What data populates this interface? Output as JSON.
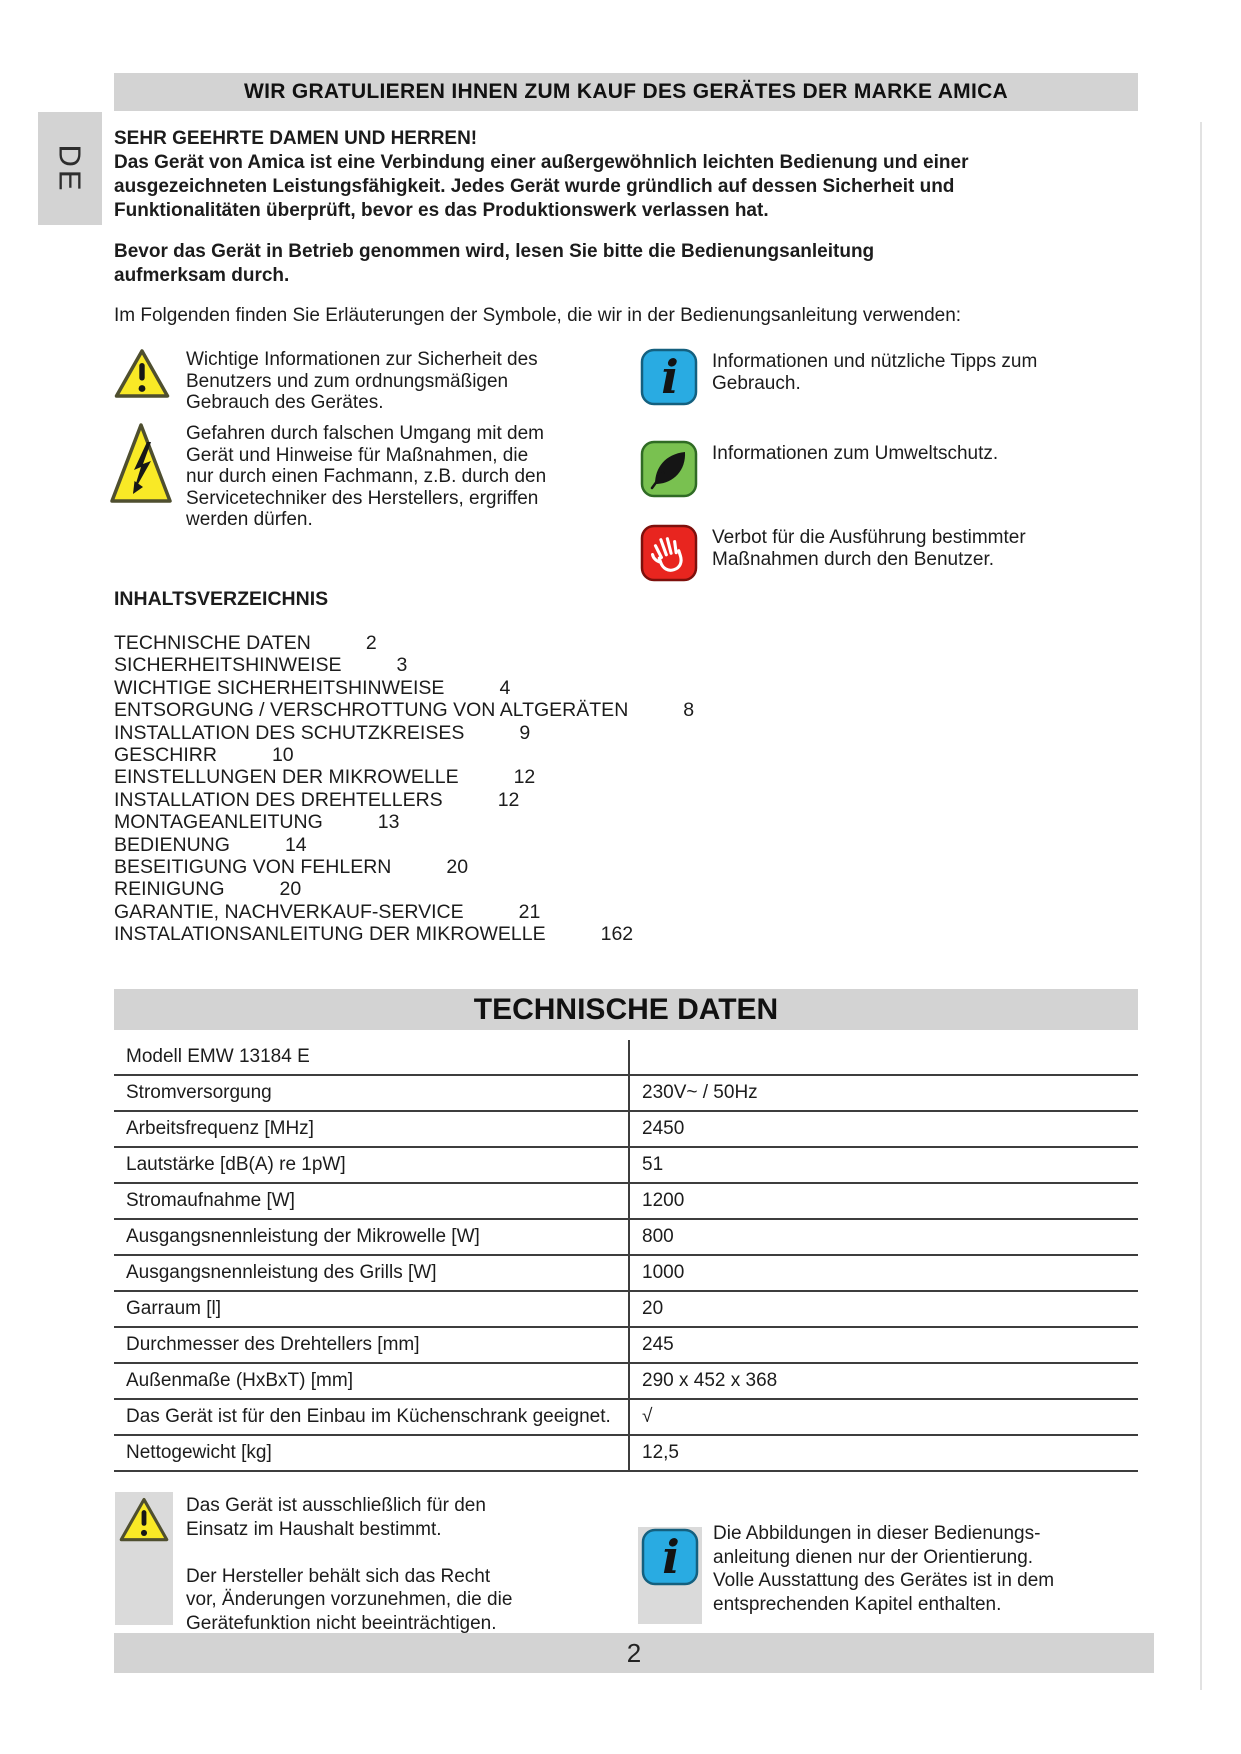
{
  "page": {
    "language_tab": "DE",
    "colors": {
      "bar_gray": "#d3d3d3",
      "icon_blue": "#29abe2",
      "icon_green": "#79c150",
      "icon_red": "#e8251f",
      "icon_yellow": "#f9e926"
    }
  },
  "header": {
    "title": "WIR GRATULIEREN IHNEN ZUM KAUF DES GERÄTES DER MARKE AMICA"
  },
  "intro": {
    "salutation": "SEHR GEEHRTE DAMEN UND HERREN!",
    "paragraph": "Das Gerät von Amica ist eine Verbindung einer außergewöhnlich leichten Bedienung und einer\nausgezeichneten Leistungsfähigkeit. Jedes Gerät wurde gründlich auf dessen Sicherheit und\nFunktionalitäten überprüft, bevor es das Produktionswerk verlassen hat.",
    "read_notice": "Bevor das Gerät in Betrieb genommen wird, lesen Sie bitte die Bedienungsanleitung\naufmerksam durch.",
    "symbols_intro": "Im Folgenden finden Sie Erläuterungen der Symbole, die wir in der Bedienungsanleitung verwenden:"
  },
  "symbols": {
    "warning": {
      "icon": "warning-triangle-icon",
      "text": "Wichtige Informationen zur Sicherheit des\nBenutzers und zum ordnungsmäßigen\nGebrauch des Gerätes."
    },
    "hazard": {
      "icon": "electric-hazard-icon",
      "text": "Gefahren durch falschen Umgang mit dem\nGerät und Hinweise für Maßnahmen, die\nnur durch einen Fachmann, z.B. durch den\nServicetechniker des Herstellers, ergriffen\nwerden dürfen."
    },
    "info": {
      "icon": "info-icon",
      "text": "Informationen und nützliche Tipps zum\nGebrauch."
    },
    "eco": {
      "icon": "leaf-icon",
      "text": "Informationen zum Umweltschutz."
    },
    "prohibition": {
      "icon": "stop-hand-icon",
      "text": "Verbot für die Ausführung bestimmter\nMaßnahmen durch den Benutzer."
    }
  },
  "toc": {
    "heading": "INHALTSVERZEICHNIS",
    "items": [
      {
        "label": "TECHNISCHE DATEN",
        "page": "2"
      },
      {
        "label": "SICHERHEITSHINWEISE",
        "page": "3"
      },
      {
        "label": "WICHTIGE SICHERHEITSHINWEISE",
        "page": "4"
      },
      {
        "label": "ENTSORGUNG / VERSCHROTTUNG VON ALTGERÄTEN",
        "page": "8"
      },
      {
        "label": "INSTALLATION DES SCHUTZKREISES",
        "page": "9"
      },
      {
        "label": "GESCHIRR",
        "page": "10"
      },
      {
        "label": "EINSTELLUNGEN DER MIKROWELLE",
        "page": "12"
      },
      {
        "label": "INSTALLATION DES DREHTELLERS",
        "page": "12"
      },
      {
        "label": "MONTAGEANLEITUNG",
        "page": "13"
      },
      {
        "label": "BEDIENUNG",
        "page": "14"
      },
      {
        "label": "BESEITIGUNG VON FEHLERN",
        "page": "20"
      },
      {
        "label": "REINIGUNG",
        "page": "20"
      },
      {
        "label": "GARANTIE, NACHVERKAUF-SERVICE",
        "page": "21"
      },
      {
        "label": "INSTALATIONSANLEITUNG DER MIKROWELLE",
        "page": "162"
      }
    ]
  },
  "tech_data": {
    "title": "TECHNISCHE DATEN",
    "rows": [
      {
        "label": "Modell EMW 13184 E",
        "value": ""
      },
      {
        "label": "Stromversorgung",
        "value": "230V~ / 50Hz"
      },
      {
        "label": "Arbeitsfrequenz [MHz]",
        "value": "2450"
      },
      {
        "label": "Lautstärke [dB(A) re 1pW]",
        "value": "51"
      },
      {
        "label": "Stromaufnahme [W]",
        "value": "1200"
      },
      {
        "label": "Ausgangsnennleistung der Mikrowelle [W]",
        "value": "800"
      },
      {
        "label": "Ausgangsnennleistung des Grills [W]",
        "value": "1000"
      },
      {
        "label": "Garraum [l]",
        "value": "20"
      },
      {
        "label": "Durchmesser des Drehtellers [mm]",
        "value": "245"
      },
      {
        "label": "Außenmaße (HxBxT) [mm]",
        "value": "290 x 452 x 368"
      },
      {
        "label": "Das Gerät ist für den Einbau im Küchenschrank geeignet.",
        "value": "√"
      },
      {
        "label": "Nettogewicht [kg]",
        "value": "12,5"
      }
    ]
  },
  "notes": {
    "domestic": "Das Gerät ist ausschließlich für den\nEinsatz im Haushalt bestimmt.\n\nDer Hersteller behält sich das Recht\nvor, Änderungen vorzunehmen, die die\nGerätefunktion nicht beeinträchtigen.",
    "illustrations": "Die Abbildungen in dieser Bedienungs-\nanleitung dienen nur der Orientierung.\nVolle Ausstattung des Gerätes ist in dem\nentsprechenden Kapitel enthalten."
  },
  "footer": {
    "page_number": "2"
  }
}
